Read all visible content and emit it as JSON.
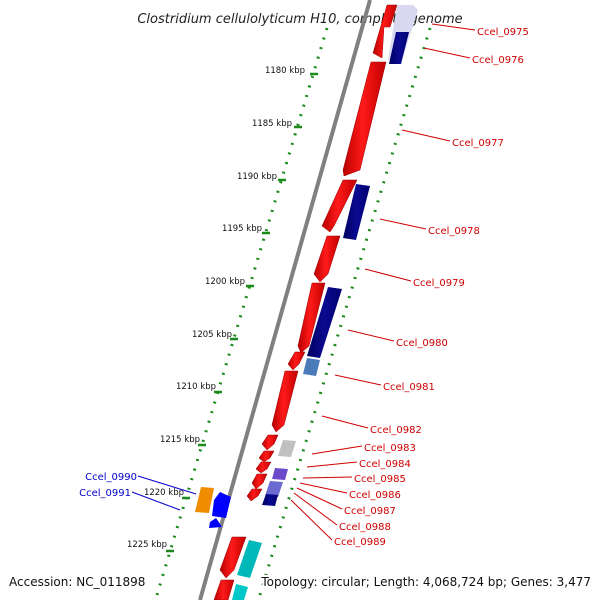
{
  "title": "Clostridium cellulolyticum H10, complete genome",
  "footer": {
    "accession": "Accession: NC_011898",
    "topology": "Topology: circular; Length: 4,068,724 bp; Genes: 3,477"
  },
  "kbp_ticks": [
    "1180 kbp",
    "1185 kbp",
    "1190 kbp",
    "1195 kbp",
    "1200 kbp",
    "1205 kbp",
    "1210 kbp",
    "1215 kbp",
    "1220 kbp",
    "1225 kbp"
  ],
  "gene_labels_right": [
    "Ccel_0975",
    "Ccel_0976",
    "Ccel_0977",
    "Ccel_0978",
    "Ccel_0979",
    "Ccel_0980",
    "Ccel_0981",
    "Ccel_0982",
    "Ccel_0983",
    "Ccel_0984",
    "Ccel_0985",
    "Ccel_0986",
    "Ccel_0987",
    "Ccel_0988",
    "Ccel_0989"
  ],
  "gene_labels_left": [
    "Ccel_0990",
    "Ccel_0991"
  ],
  "colors": {
    "forward_cds": "#ff0000",
    "reverse_cds": "#000080",
    "backbone": "#808080",
    "dotted_track": "#008000",
    "right_label": "#d00000",
    "left_label": "#0000cc"
  }
}
